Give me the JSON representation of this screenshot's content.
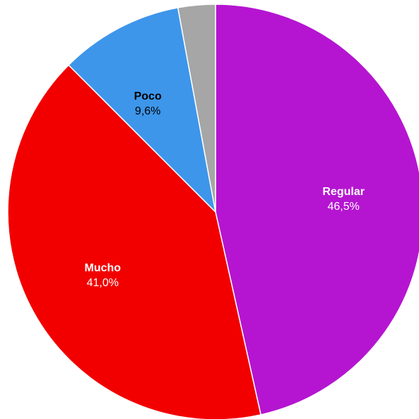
{
  "chart_data": {
    "type": "pie",
    "title": "",
    "start_angle_deg": 0,
    "direction": "clockwise",
    "slices": [
      {
        "name": "Regular",
        "value": 46.5,
        "value_label": "46,5%",
        "color": "#b515d1",
        "label_color": "#ffffff",
        "show_label": true
      },
      {
        "name": "Mucho",
        "value": 41.0,
        "value_label": "41,0%",
        "color": "#f20000",
        "label_color": "#ffffff",
        "show_label": true
      },
      {
        "name": "Poco",
        "value": 9.6,
        "value_label": "9,6%",
        "color": "#3d96ea",
        "label_color": "#000000",
        "show_label": true
      },
      {
        "name": "",
        "value": 2.9,
        "value_label": "",
        "color": "#a6a6a6",
        "label_color": "#000000",
        "show_label": false
      }
    ],
    "legend": "none"
  }
}
